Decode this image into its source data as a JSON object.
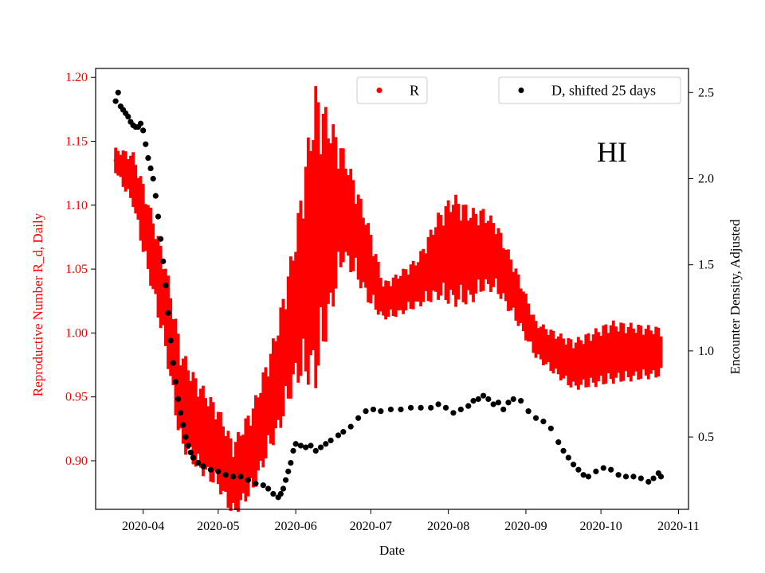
{
  "chart_data": {
    "type": "line",
    "annotation": "HI",
    "xlabel": "Date",
    "ylabel_left": "Reproductive Number R_d, Daily",
    "ylabel_right": "Encounter Density, Adjusted",
    "x_ticks": [
      "2020-04",
      "2020-05",
      "2020-06",
      "2020-07",
      "2020-08",
      "2020-09",
      "2020-10",
      "2020-11"
    ],
    "x_range": [
      "2020-03-13",
      "2020-11-05"
    ],
    "ylim_left": [
      0.862,
      1.207
    ],
    "y_ticks_left": [
      "0.90",
      "0.95",
      "1.00",
      "1.05",
      "1.10",
      "1.15",
      "1.20"
    ],
    "ylim_right": [
      0.08,
      2.64
    ],
    "y_ticks_right": [
      "0.5",
      "1.0",
      "1.5",
      "2.0",
      "2.5"
    ],
    "legend": [
      {
        "label": "R",
        "color": "#ff0000",
        "placement": "top-center"
      },
      {
        "label": "D, shifted 25 days",
        "color": "#000000",
        "placement": "top-right"
      }
    ],
    "grid": false,
    "series": [
      {
        "name": "R",
        "axis": "left",
        "color": "#ff0000",
        "start_date": "2020-03-21",
        "end_date": "2020-10-25",
        "mean": [
          [
            "2020-03-21",
            1.135
          ],
          [
            "2020-03-28",
            1.12
          ],
          [
            "2020-04-05",
            1.06
          ],
          [
            "2020-04-10",
            1.02
          ],
          [
            "2020-04-16",
            0.95
          ],
          [
            "2020-04-22",
            0.93
          ],
          [
            "2020-05-01",
            0.91
          ],
          [
            "2020-05-07",
            0.885
          ],
          [
            "2020-05-15",
            0.91
          ],
          [
            "2020-05-25",
            0.965
          ],
          [
            "2020-06-01",
            1.02
          ],
          [
            "2020-06-05",
            1.05
          ],
          [
            "2020-06-09",
            1.075
          ],
          [
            "2020-06-15",
            1.09
          ],
          [
            "2020-06-20",
            1.1
          ],
          [
            "2020-06-25",
            1.08
          ],
          [
            "2020-07-01",
            1.05
          ],
          [
            "2020-07-06",
            1.025
          ],
          [
            "2020-07-12",
            1.03
          ],
          [
            "2020-07-20",
            1.04
          ],
          [
            "2020-07-28",
            1.06
          ],
          [
            "2020-08-03",
            1.065
          ],
          [
            "2020-08-10",
            1.06
          ],
          [
            "2020-08-15",
            1.065
          ],
          [
            "2020-08-20",
            1.06
          ],
          [
            "2020-08-28",
            1.03
          ],
          [
            "2020-09-05",
            0.995
          ],
          [
            "2020-09-12",
            0.985
          ],
          [
            "2020-09-20",
            0.975
          ],
          [
            "2020-09-28",
            0.98
          ],
          [
            "2020-10-05",
            0.985
          ],
          [
            "2020-10-12",
            0.985
          ],
          [
            "2020-10-20",
            0.985
          ],
          [
            "2020-10-25",
            0.985
          ]
        ],
        "band_width": [
          [
            "2020-03-21",
            0.01
          ],
          [
            "2020-04-01",
            0.028
          ],
          [
            "2020-04-15",
            0.04
          ],
          [
            "2020-05-07",
            0.03
          ],
          [
            "2020-05-22",
            0.04
          ],
          [
            "2020-06-01",
            0.06
          ],
          [
            "2020-06-09",
            0.12
          ],
          [
            "2020-06-20",
            0.045
          ],
          [
            "2020-07-01",
            0.03
          ],
          [
            "2020-07-06",
            0.015
          ],
          [
            "2020-07-20",
            0.02
          ],
          [
            "2020-08-03",
            0.045
          ],
          [
            "2020-08-18",
            0.03
          ],
          [
            "2020-09-05",
            0.015
          ],
          [
            "2020-09-20",
            0.02
          ],
          [
            "2020-10-05",
            0.025
          ],
          [
            "2020-10-25",
            0.02
          ]
        ]
      },
      {
        "name": "D, shifted 25 days",
        "axis": "right",
        "color": "#000000",
        "points": [
          [
            "2020-03-21",
            2.45
          ],
          [
            "2020-03-22",
            2.5
          ],
          [
            "2020-03-23",
            2.42
          ],
          [
            "2020-03-24",
            2.4
          ],
          [
            "2020-03-25",
            2.38
          ],
          [
            "2020-03-26",
            2.36
          ],
          [
            "2020-03-27",
            2.33
          ],
          [
            "2020-03-28",
            2.31
          ],
          [
            "2020-03-29",
            2.3
          ],
          [
            "2020-03-30",
            2.3
          ],
          [
            "2020-03-31",
            2.32
          ],
          [
            "2020-04-01",
            2.28
          ],
          [
            "2020-04-02",
            2.2
          ],
          [
            "2020-04-03",
            2.12
          ],
          [
            "2020-04-04",
            2.06
          ],
          [
            "2020-04-05",
            2.0
          ],
          [
            "2020-04-06",
            1.9
          ],
          [
            "2020-04-07",
            1.78
          ],
          [
            "2020-04-08",
            1.65
          ],
          [
            "2020-04-09",
            1.52
          ],
          [
            "2020-04-10",
            1.38
          ],
          [
            "2020-04-11",
            1.22
          ],
          [
            "2020-04-12",
            1.06
          ],
          [
            "2020-04-13",
            0.93
          ],
          [
            "2020-04-14",
            0.82
          ],
          [
            "2020-04-15",
            0.72
          ],
          [
            "2020-04-16",
            0.64
          ],
          [
            "2020-04-17",
            0.57
          ],
          [
            "2020-04-18",
            0.5
          ],
          [
            "2020-04-19",
            0.45
          ],
          [
            "2020-04-20",
            0.41
          ],
          [
            "2020-04-21",
            0.38
          ],
          [
            "2020-04-23",
            0.35
          ],
          [
            "2020-04-25",
            0.33
          ],
          [
            "2020-04-28",
            0.31
          ],
          [
            "2020-05-01",
            0.3
          ],
          [
            "2020-05-04",
            0.28
          ],
          [
            "2020-05-07",
            0.27
          ],
          [
            "2020-05-10",
            0.27
          ],
          [
            "2020-05-13",
            0.25
          ],
          [
            "2020-05-16",
            0.23
          ],
          [
            "2020-05-19",
            0.22
          ],
          [
            "2020-05-21",
            0.2
          ],
          [
            "2020-05-23",
            0.17
          ],
          [
            "2020-05-25",
            0.15
          ],
          [
            "2020-05-26",
            0.17
          ],
          [
            "2020-05-27",
            0.2
          ],
          [
            "2020-05-28",
            0.25
          ],
          [
            "2020-05-29",
            0.3
          ],
          [
            "2020-05-30",
            0.35
          ],
          [
            "2020-05-31",
            0.42
          ],
          [
            "2020-06-01",
            0.46
          ],
          [
            "2020-06-03",
            0.45
          ],
          [
            "2020-06-05",
            0.44
          ],
          [
            "2020-06-07",
            0.45
          ],
          [
            "2020-06-09",
            0.42
          ],
          [
            "2020-06-11",
            0.44
          ],
          [
            "2020-06-13",
            0.46
          ],
          [
            "2020-06-15",
            0.48
          ],
          [
            "2020-06-18",
            0.51
          ],
          [
            "2020-06-20",
            0.53
          ],
          [
            "2020-06-23",
            0.56
          ],
          [
            "2020-06-26",
            0.61
          ],
          [
            "2020-06-29",
            0.65
          ],
          [
            "2020-07-02",
            0.66
          ],
          [
            "2020-07-05",
            0.65
          ],
          [
            "2020-07-09",
            0.66
          ],
          [
            "2020-07-13",
            0.66
          ],
          [
            "2020-07-17",
            0.67
          ],
          [
            "2020-07-21",
            0.67
          ],
          [
            "2020-07-25",
            0.67
          ],
          [
            "2020-07-28",
            0.69
          ],
          [
            "2020-07-31",
            0.67
          ],
          [
            "2020-08-03",
            0.64
          ],
          [
            "2020-08-06",
            0.66
          ],
          [
            "2020-08-09",
            0.68
          ],
          [
            "2020-08-11",
            0.71
          ],
          [
            "2020-08-13",
            0.72
          ],
          [
            "2020-08-15",
            0.74
          ],
          [
            "2020-08-17",
            0.72
          ],
          [
            "2020-08-19",
            0.69
          ],
          [
            "2020-08-21",
            0.7
          ],
          [
            "2020-08-23",
            0.66
          ],
          [
            "2020-08-25",
            0.7
          ],
          [
            "2020-08-27",
            0.72
          ],
          [
            "2020-08-30",
            0.71
          ],
          [
            "2020-09-02",
            0.65
          ],
          [
            "2020-09-05",
            0.61
          ],
          [
            "2020-09-08",
            0.59
          ],
          [
            "2020-09-11",
            0.55
          ],
          [
            "2020-09-14",
            0.47
          ],
          [
            "2020-09-16",
            0.42
          ],
          [
            "2020-09-18",
            0.38
          ],
          [
            "2020-09-20",
            0.34
          ],
          [
            "2020-09-22",
            0.31
          ],
          [
            "2020-09-24",
            0.28
          ],
          [
            "2020-09-26",
            0.27
          ],
          [
            "2020-09-29",
            0.3
          ],
          [
            "2020-10-02",
            0.32
          ],
          [
            "2020-10-05",
            0.31
          ],
          [
            "2020-10-08",
            0.28
          ],
          [
            "2020-10-11",
            0.27
          ],
          [
            "2020-10-14",
            0.27
          ],
          [
            "2020-10-17",
            0.26
          ],
          [
            "2020-10-20",
            0.24
          ],
          [
            "2020-10-22",
            0.26
          ],
          [
            "2020-10-24",
            0.29
          ],
          [
            "2020-10-25",
            0.27
          ]
        ]
      }
    ]
  }
}
